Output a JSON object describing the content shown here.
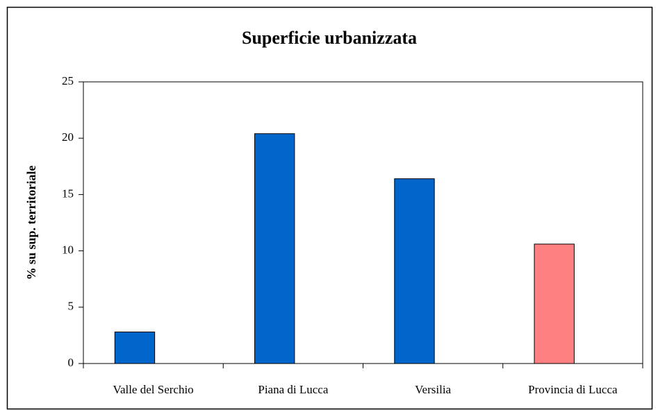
{
  "chart_data": {
    "type": "bar",
    "title": "Superficie urbanizzata",
    "y_label": "% su sup. territoriale",
    "categories": [
      "Valle del Serchio",
      "Piana di Lucca",
      "Versilia",
      "Provincia di Lucca"
    ],
    "values": [
      2.8,
      20.4,
      16.4,
      10.6
    ],
    "colors": [
      "#0066cc",
      "#0066cc",
      "#0066cc",
      "#ff8080"
    ],
    "ylim": [
      0,
      25
    ],
    "yticks": [
      0,
      5,
      10,
      15,
      20,
      25
    ],
    "grid": false
  }
}
